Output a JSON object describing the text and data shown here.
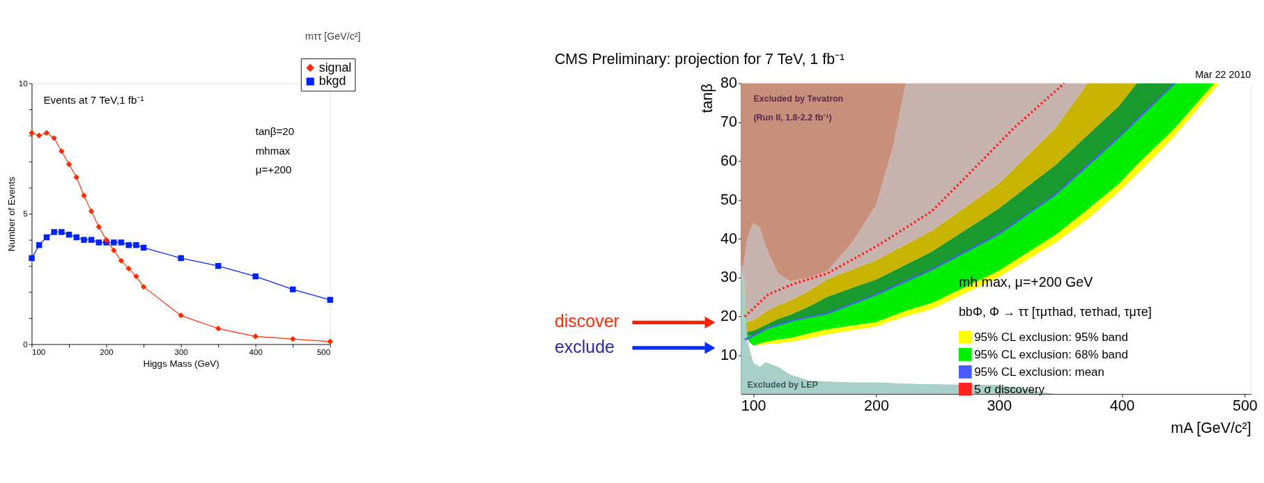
{
  "chart_data": [
    {
      "type": "line",
      "xlabel": "Higgs Mass (GeV)",
      "ylabel": "Number of Events",
      "x": [
        100,
        110,
        120,
        130,
        140,
        150,
        160,
        170,
        180,
        190,
        200,
        210,
        220,
        230,
        240,
        250,
        300,
        350,
        400,
        450,
        500
      ],
      "series": [
        {
          "name": "signal",
          "color": "#ff2a00",
          "marker": "diamond",
          "values": [
            8.1,
            8.0,
            8.1,
            7.9,
            7.4,
            6.9,
            6.4,
            5.7,
            5.1,
            4.5,
            4.0,
            3.6,
            3.2,
            2.9,
            2.6,
            2.2,
            1.1,
            0.6,
            0.3,
            0.2,
            0.1
          ]
        },
        {
          "name": "bkgd",
          "color": "#0022ff",
          "marker": "square",
          "values": [
            3.3,
            3.8,
            4.1,
            4.3,
            4.3,
            4.2,
            4.1,
            4.0,
            4.0,
            3.9,
            3.9,
            3.9,
            3.9,
            3.8,
            3.8,
            3.7,
            3.3,
            3.0,
            2.6,
            2.1,
            1.7
          ]
        }
      ],
      "xlim": [
        100,
        500
      ],
      "ylim": [
        0,
        10
      ],
      "xticks": [
        100,
        {
          "value": 150,
          "label": null
        },
        200,
        {
          "value": 250,
          "label": null
        },
        300,
        {
          "value": 350,
          "label": null
        },
        400,
        {
          "value": 450,
          "label": null
        },
        500
      ],
      "yticks": [
        0,
        {
          "value": 1,
          "label": null
        },
        {
          "value": 2,
          "label": null
        },
        {
          "value": 3,
          "label": null
        },
        {
          "value": 4,
          "label": null
        },
        5,
        {
          "value": 6,
          "label": null
        },
        {
          "value": 7,
          "label": null
        },
        {
          "value": 8,
          "label": null
        },
        {
          "value": 9,
          "label": null
        },
        10
      ],
      "legend": "top right",
      "annotations": [
        "Events at 7 TeV,1 fb⁻¹",
        "tanβ=20",
        "mhmax",
        "μ=+200",
        "mττ [GeV/c²]"
      ]
    },
    {
      "type": "area",
      "title": "CMS Preliminary: projection for 7 TeV, 1 fb⁻¹",
      "xlabel": "mA [GeV/c²]",
      "ylabel": "tanβ",
      "series": [
        {
          "type": "area",
          "color": "#a8d0c8",
          "values": [
            32,
            30,
            14,
            8,
            7,
            8.2,
            7,
            5,
            3.5,
            3.2,
            3,
            3,
            2.8,
            2.7,
            2.5,
            2.3,
            0,
            null,
            null,
            null,
            null,
            null,
            null,
            null
          ]
        },
        {
          "type": "area",
          "color": "#ffffff",
          "values": [
            null,
            null,
            0,
            4.4,
            5.6,
            4.6,
            6.1,
            8.4,
            10.8,
            12.1,
            13.4,
            14.4,
            16.2,
            17.3,
            19.3,
            27.7,
            39,
            45,
            52,
            56.5,
            66.5,
            78.4,
            80,
            80
          ]
        },
        {
          "type": "area",
          "name": "95% CL exclusion: 95% band",
          "color": "#ffff00",
          "values": [
            null,
            null,
            null,
            0,
            0.4,
            0.6,
            0.9,
            1,
            1.3,
            1.3,
            1.2,
            1.1,
            1.2,
            1.4,
            1.6,
            1.6,
            2,
            2.5,
            2,
            2.5,
            2,
            1.6,
            0,
            null
          ]
        },
        {
          "type": "area",
          "name": "95% CL exclusion: 68% band",
          "color": "#00ee00",
          "values": [
            null,
            0,
            1,
            2.6,
            2.8,
            3.1,
            3.8,
            4.3,
            4.3,
            4.1,
            5.4,
            7.1,
            7.5,
            7.8,
            8.6,
            9.4,
            10.4,
            11,
            12,
            11.5,
            11.5,
            0,
            null,
            null
          ]
        },
        {
          "type": "area",
          "color": "#1a9a2e",
          "values": [
            null,
            0,
            1,
            1.3,
            1.2,
            1.3,
            1.5,
            1.7,
            2.6,
            4.3,
            4.3,
            3.9,
            4,
            4.1,
            4.6,
            6.6,
            7.6,
            8.2,
            8,
            9.5,
            0,
            null,
            null,
            null
          ]
        },
        {
          "type": "area",
          "color": "#c8b400",
          "values": [
            null,
            0,
            2.5,
            2.7,
            3,
            3.4,
            3.5,
            3.6,
            4,
            4.5,
            4.7,
            4.9,
            5.1,
            5.2,
            5.4,
            6.4,
            9.5,
            13.3,
            6,
            0,
            null,
            null,
            null,
            null
          ]
        },
        {
          "type": "area",
          "color": "#c8b4ae",
          "values": [
            1,
            3,
            21.5,
            25,
            23,
            16.8,
            8.2,
            5,
            3.5,
            2.1,
            6.8,
            14.3,
            27.2,
            41.5,
            38,
            26,
            11.5,
            0,
            null,
            null,
            null,
            null,
            null,
            null
          ]
        },
        {
          "type": "area",
          "color": "#c8907a",
          "values": [
            47,
            47,
            40,
            36,
            37,
            42,
            49,
            51,
            50,
            48.4,
            41.2,
            31.3,
            16,
            0,
            null,
            null,
            null,
            null,
            null,
            null,
            null,
            null,
            null,
            null
          ]
        },
        {
          "type": "line",
          "name": "95% CL exclusion: mean",
          "color": "#4a5aff",
          "line_style": "solid",
          "x": [
            93,
            100,
            112,
            133,
            160,
            200,
            245,
            299,
            346,
            397,
            443
          ],
          "values": [
            14,
            15,
            17,
            19,
            20.7,
            25.6,
            32,
            41,
            51.4,
            66,
            80
          ]
        },
        {
          "type": "line",
          "name": "5 σ discovery",
          "color": "#ff2020",
          "line_style": "dotted",
          "x": [
            93,
            112,
            133,
            160,
            200,
            245,
            278,
            312,
            353
          ],
          "values": [
            19.9,
            25.6,
            28.4,
            31,
            38,
            47,
            57.5,
            68.5,
            80
          ]
        }
      ],
      "x": [
        90,
        92,
        95,
        100,
        105,
        110,
        120,
        130,
        145,
        160,
        180,
        200,
        214,
        224,
        245,
        299,
        346,
        372,
        397,
        412,
        443,
        475,
        479,
        505
      ],
      "stacked": true,
      "xlim": [
        90,
        505
      ],
      "ylim": [
        0,
        80
      ],
      "xticks": [
        100,
        200,
        300,
        400,
        500
      ],
      "yticks": [
        10,
        20,
        30,
        40,
        50,
        60,
        70,
        80
      ],
      "legend": "bottom right",
      "annotations": [
        "Mar 22 2010",
        "Excluded by Tevatron",
        "(Run II, 1.8-2.2 fb⁻¹)",
        "Excluded by LEP",
        "mh max, μ=+200 GeV",
        "bbΦ, Φ → ττ    [τμτhad, τeτhad, τμτe]",
        "discover",
        "exclude"
      ]
    }
  ]
}
